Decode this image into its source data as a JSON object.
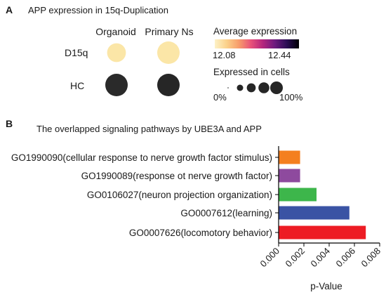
{
  "panel_a": {
    "letter": "A",
    "title": "APP expression in 15q-Duplication"
  },
  "panel_b": {
    "letter": "B",
    "title": "The overlapped signaling pathways by UBE3A and APP"
  },
  "colors": {
    "bar_colors": [
      "#f47f1f",
      "#8e4a9e",
      "#3db64b",
      "#3a53a4",
      "#ed1c24"
    ],
    "colormap": [
      "#fdf2c7",
      "#fbd18a",
      "#f79c6b",
      "#e8527a",
      "#b4257d",
      "#6c1a7e",
      "#2a0d54",
      "#000004"
    ],
    "dot_scale": [
      "#fbe6a7",
      "#3a3a3a",
      "#262626"
    ]
  },
  "chart_data": [
    {
      "type": "scatter",
      "title": "APP expression in 15q-Duplication",
      "columns": [
        "Organoid",
        "Primary Ns"
      ],
      "rows": [
        "D15q",
        "HC"
      ],
      "average_expression": [
        [
          12.08,
          12.08
        ],
        [
          12.4,
          12.44
        ]
      ],
      "expressed_in_cells_pct": [
        [
          70,
          100
        ],
        [
          100,
          100
        ]
      ],
      "color_legend": {
        "title": "Average expression",
        "min_label": "12.08",
        "max_label": "12.44",
        "range": [
          12.08,
          12.44
        ]
      },
      "size_legend": {
        "title": "Expressed in cells",
        "min_label": "0%",
        "max_label": "100%",
        "steps": [
          0,
          25,
          50,
          75,
          100
        ]
      }
    },
    {
      "type": "bar",
      "orientation": "horizontal",
      "title": "The overlapped signaling pathways by UBE3A and APP",
      "categories": [
        "GO1990090(cellular response to nerve growth factor stimulus)",
        "GO1990089(response ot nerve growth factor)",
        "GO0106027(neuron projection organization)",
        "GO0007612(learning)",
        "GO0007626(locomotory behavior)"
      ],
      "values": [
        0.0017,
        0.0017,
        0.003,
        0.0056,
        0.0069
      ],
      "xlabel": "p-Value",
      "xlim": [
        0,
        0.008
      ],
      "xticks": [
        "0.000",
        "0.002",
        "0.004",
        "0.006",
        "0.008"
      ]
    }
  ]
}
